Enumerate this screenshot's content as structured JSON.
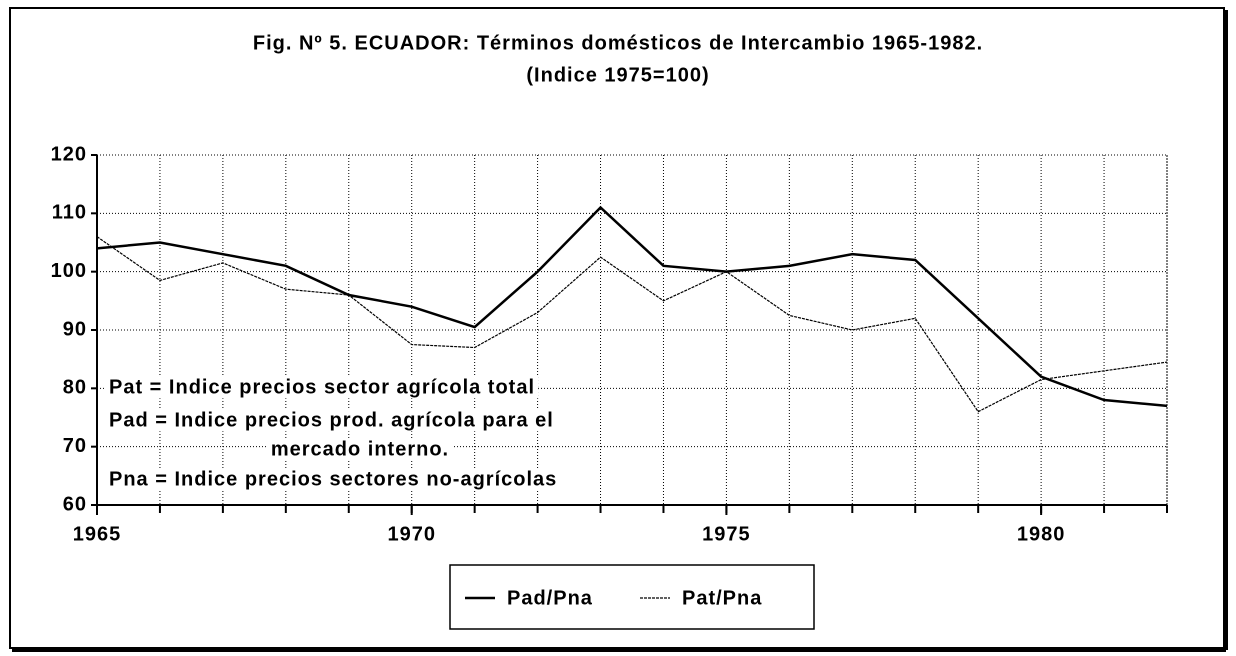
{
  "chart_data": {
    "type": "line",
    "title": "Fig. Nº 5. ECUADOR: Términos domésticos de Intercambio  1965-1982.",
    "subtitle": "(Indice 1975=100)",
    "x": [
      1965,
      1966,
      1967,
      1968,
      1969,
      1970,
      1971,
      1972,
      1973,
      1974,
      1975,
      1976,
      1977,
      1978,
      1979,
      1980,
      1981,
      1982
    ],
    "series": [
      {
        "name": "Pad/Pna",
        "color": "#000000",
        "values": [
          104,
          105,
          103,
          101,
          96,
          94,
          90.5,
          100,
          111,
          101,
          100,
          101,
          103,
          102,
          92,
          82,
          78,
          77
        ]
      },
      {
        "name": "Pat/Pna",
        "color": "#000000",
        "values": [
          106,
          98.5,
          101.5,
          97,
          96,
          87.5,
          87,
          93,
          102.5,
          95,
          100,
          92.5,
          90,
          92,
          76,
          81.5,
          83,
          84.5
        ]
      }
    ],
    "xlim": [
      1965,
      1982
    ],
    "xticks": [
      1965,
      1970,
      1975,
      1980
    ],
    "ylim": [
      60,
      120
    ],
    "yticks": [
      60,
      70,
      80,
      90,
      100,
      110,
      120
    ],
    "grid": true,
    "legend": "bottom",
    "annotations": [
      "Pat = Indice precios sector agrícola total",
      "Pad = Indice precios prod. agrícola para el",
      "mercado interno.",
      "Pna = Indice precios sectores no-agrícolas"
    ]
  }
}
